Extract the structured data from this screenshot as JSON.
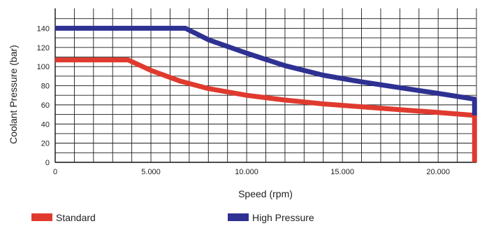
{
  "chart_data": {
    "type": "line",
    "title": "",
    "xlabel": "Speed (rpm)",
    "ylabel": "Coolant Pressure (bar)",
    "xlim": [
      0,
      22000
    ],
    "ylim": [
      0,
      140
    ],
    "x_ticks": [
      0,
      5000,
      10000,
      15000,
      20000
    ],
    "x_tick_labels": [
      "0",
      "5.000",
      "10.000",
      "15.000",
      "20.000"
    ],
    "y_ticks": [
      0,
      20,
      40,
      60,
      80,
      100,
      120,
      140
    ],
    "y_tick_labels": [
      "0",
      "20",
      "40",
      "60",
      "80",
      "100",
      "120",
      "140"
    ],
    "grid": true,
    "legend_position": "bottom",
    "series": [
      {
        "name": "Standard",
        "color": "#e03a2f",
        "x": [
          0,
          3800,
          5000,
          6500,
          8000,
          10000,
          12000,
          14000,
          16000,
          18000,
          20000,
          21900,
          21900
        ],
        "y": [
          107,
          107,
          96,
          85,
          77,
          70,
          65,
          61,
          58,
          55,
          52,
          49,
          0
        ]
      },
      {
        "name": "High Pressure",
        "color": "#2e3192",
        "x": [
          0,
          6800,
          8000,
          10000,
          12000,
          14000,
          16000,
          18000,
          20000,
          21900,
          21900
        ],
        "y": [
          140,
          140,
          128,
          114,
          101,
          91,
          84,
          78,
          72,
          66,
          49
        ]
      }
    ]
  }
}
